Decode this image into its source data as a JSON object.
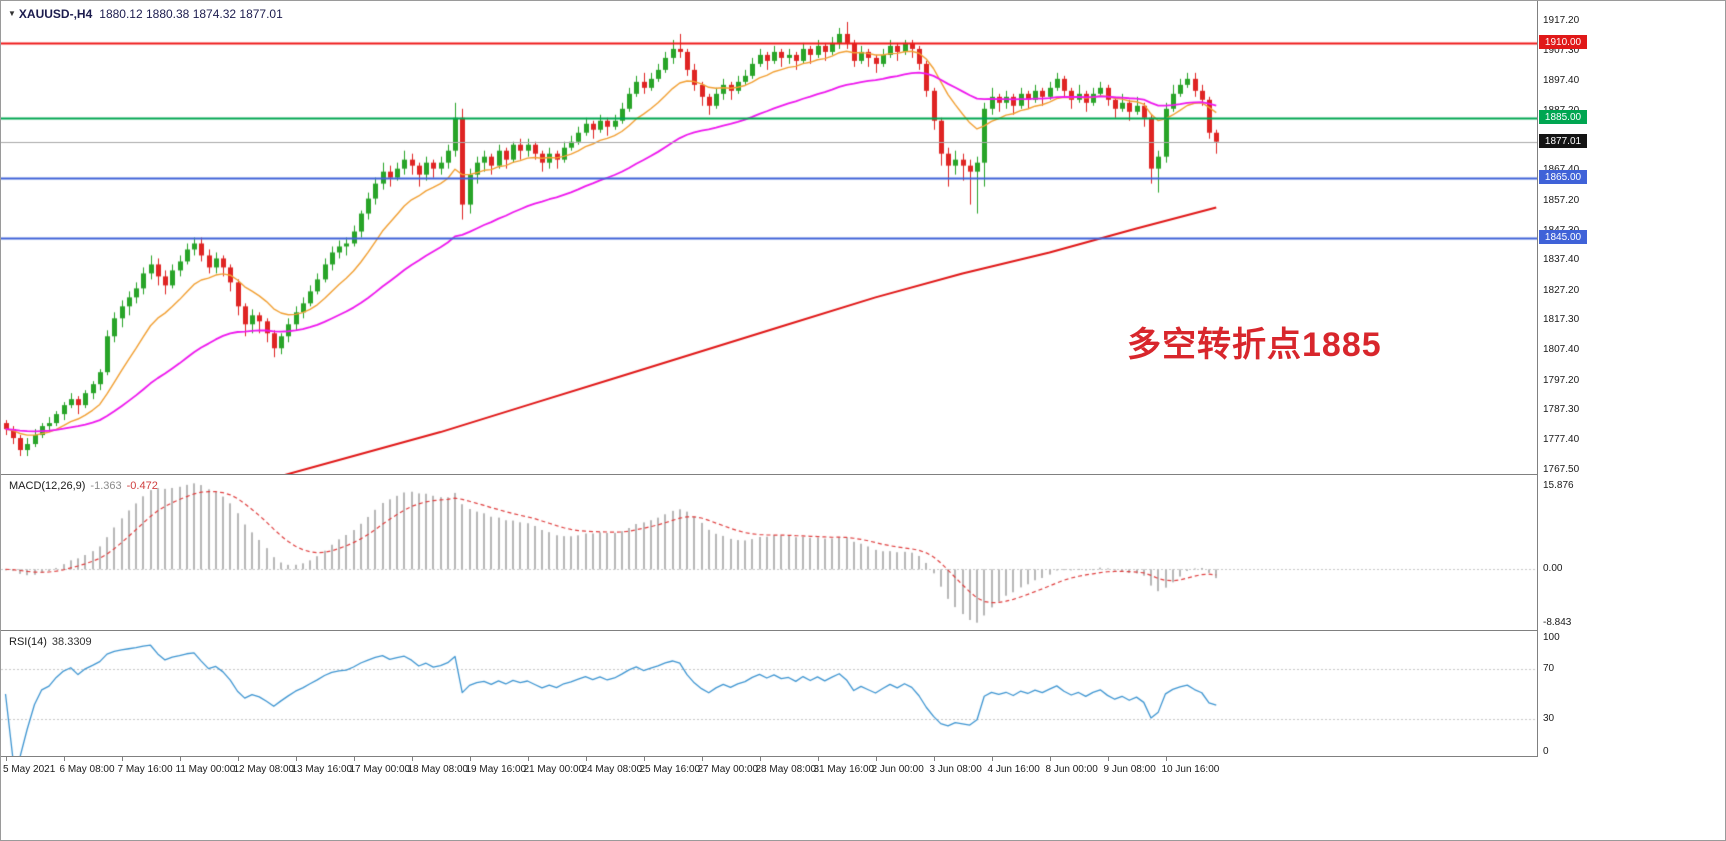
{
  "title": {
    "symbol": "XAUUSD-,H4",
    "ohlc": "1880.12 1880.38 1874.32 1877.01",
    "collapse_icon": "▼"
  },
  "annotation": {
    "text": "多空转折点1885",
    "color": "#d8262c"
  },
  "colors": {
    "bull": "#28a428",
    "bear": "#df2423",
    "ma_fast": "#f2a033",
    "ma_mid": "#ee18ee",
    "ma_slow": "#e01818",
    "hist": "#b8b8b8",
    "signal": "#e04040",
    "rsi": "#3f96d2",
    "axis_text": "#1a1a1a",
    "border": "#808080"
  },
  "chart_data": {
    "type": "candlestick",
    "symbol": "XAUUSD",
    "timeframe": "H4",
    "main": {
      "price_top": 1924,
      "price_bottom": 1766,
      "axis_ticks": [
        "1917.20",
        "1907.30",
        "1897.40",
        "1887.20",
        "1867.40",
        "1857.20",
        "1847.30",
        "1837.40",
        "1827.20",
        "1817.30",
        "1807.40",
        "1797.20",
        "1787.30",
        "1777.40",
        "1767.50"
      ],
      "hlines": [
        {
          "price": 1910.0,
          "label": "1910.00",
          "line": "#f01818",
          "badge": "#e01818",
          "width": 2
        },
        {
          "price": 1885.0,
          "label": "1885.00",
          "line": "#00a651",
          "badge": "#00a651",
          "width": 2
        },
        {
          "price": 1877.01,
          "label": "1877.01",
          "line": "#a8a8a8",
          "badge": "#141414",
          "width": 1
        },
        {
          "price": 1865.0,
          "label": "1865.00",
          "line": "#3f62d8",
          "badge": "#3f62d8",
          "width": 2
        },
        {
          "price": 1845.0,
          "label": "1845.00",
          "line": "#3f62d8",
          "badge": "#3f62d8",
          "width": 2
        }
      ],
      "slow_ma_points": [
        [
          36,
          1764
        ],
        [
          48,
          1772
        ],
        [
          60,
          1780
        ],
        [
          72,
          1789
        ],
        [
          84,
          1798
        ],
        [
          96,
          1807
        ],
        [
          108,
          1816
        ],
        [
          120,
          1825
        ],
        [
          132,
          1833
        ],
        [
          144,
          1840
        ],
        [
          156,
          1848
        ],
        [
          167,
          1855
        ]
      ],
      "candles": [
        [
          1783,
          1784,
          1779,
          1781
        ],
        [
          1781,
          1782,
          1776,
          1778
        ],
        [
          1778,
          1779,
          1772,
          1774
        ],
        [
          1774,
          1778,
          1772,
          1776
        ],
        [
          1776,
          1781,
          1775,
          1779
        ],
        [
          1779,
          1783,
          1778,
          1782
        ],
        [
          1782,
          1785,
          1780,
          1783
        ],
        [
          1783,
          1787,
          1782,
          1786
        ],
        [
          1786,
          1790,
          1784,
          1789
        ],
        [
          1789,
          1793,
          1788,
          1791
        ],
        [
          1791,
          1792,
          1786,
          1789
        ],
        [
          1789,
          1794,
          1788,
          1793
        ],
        [
          1793,
          1797,
          1791,
          1796
        ],
        [
          1796,
          1801,
          1794,
          1800
        ],
        [
          1800,
          1814,
          1799,
          1812
        ],
        [
          1812,
          1820,
          1810,
          1818
        ],
        [
          1818,
          1824,
          1815,
          1822
        ],
        [
          1822,
          1827,
          1819,
          1825
        ],
        [
          1825,
          1830,
          1823,
          1828
        ],
        [
          1828,
          1835,
          1826,
          1833
        ],
        [
          1833,
          1839,
          1831,
          1836
        ],
        [
          1836,
          1838,
          1829,
          1832
        ],
        [
          1832,
          1834,
          1826,
          1829
        ],
        [
          1829,
          1836,
          1828,
          1834
        ],
        [
          1834,
          1839,
          1832,
          1837
        ],
        [
          1837,
          1843,
          1836,
          1841
        ],
        [
          1841,
          1845,
          1839,
          1843
        ],
        [
          1843,
          1845,
          1837,
          1839
        ],
        [
          1839,
          1841,
          1833,
          1835
        ],
        [
          1835,
          1840,
          1833,
          1838
        ],
        [
          1838,
          1839,
          1832,
          1835
        ],
        [
          1835,
          1836,
          1827,
          1830
        ],
        [
          1830,
          1831,
          1819,
          1822
        ],
        [
          1822,
          1823,
          1812,
          1816
        ],
        [
          1816,
          1821,
          1813,
          1819
        ],
        [
          1819,
          1820,
          1813,
          1817
        ],
        [
          1817,
          1818,
          1810,
          1813
        ],
        [
          1813,
          1814,
          1805,
          1808
        ],
        [
          1808,
          1813,
          1806,
          1812
        ],
        [
          1812,
          1818,
          1810,
          1816
        ],
        [
          1816,
          1822,
          1814,
          1820
        ],
        [
          1820,
          1825,
          1818,
          1823
        ],
        [
          1823,
          1829,
          1822,
          1827
        ],
        [
          1827,
          1833,
          1826,
          1831
        ],
        [
          1831,
          1838,
          1830,
          1836
        ],
        [
          1836,
          1842,
          1834,
          1840
        ],
        [
          1840,
          1844,
          1838,
          1842
        ],
        [
          1842,
          1845,
          1839,
          1843
        ],
        [
          1843,
          1849,
          1842,
          1847
        ],
        [
          1847,
          1854,
          1845,
          1853
        ],
        [
          1853,
          1860,
          1851,
          1858
        ],
        [
          1858,
          1865,
          1856,
          1863
        ],
        [
          1863,
          1870,
          1861,
          1867
        ],
        [
          1867,
          1869,
          1862,
          1865
        ],
        [
          1865,
          1870,
          1864,
          1868
        ],
        [
          1868,
          1874,
          1866,
          1871
        ],
        [
          1871,
          1873,
          1866,
          1869
        ],
        [
          1869,
          1870,
          1862,
          1866
        ],
        [
          1866,
          1872,
          1864,
          1870
        ],
        [
          1870,
          1871,
          1865,
          1868
        ],
        [
          1868,
          1872,
          1866,
          1870
        ],
        [
          1870,
          1876,
          1868,
          1874
        ],
        [
          1874,
          1890,
          1872,
          1885
        ],
        [
          1885,
          1888,
          1851,
          1856
        ],
        [
          1856,
          1868,
          1853,
          1866
        ],
        [
          1866,
          1872,
          1863,
          1870
        ],
        [
          1870,
          1874,
          1867,
          1872
        ],
        [
          1872,
          1873,
          1866,
          1869
        ],
        [
          1869,
          1876,
          1868,
          1874
        ],
        [
          1874,
          1875,
          1868,
          1871
        ],
        [
          1871,
          1877,
          1870,
          1876
        ],
        [
          1876,
          1878,
          1871,
          1874
        ],
        [
          1874,
          1878,
          1872,
          1876
        ],
        [
          1876,
          1877,
          1871,
          1873
        ],
        [
          1873,
          1874,
          1867,
          1870
        ],
        [
          1870,
          1875,
          1868,
          1873
        ],
        [
          1873,
          1874,
          1868,
          1871
        ],
        [
          1871,
          1877,
          1870,
          1875
        ],
        [
          1875,
          1879,
          1874,
          1877
        ],
        [
          1877,
          1882,
          1876,
          1880
        ],
        [
          1880,
          1885,
          1879,
          1883
        ],
        [
          1883,
          1884,
          1878,
          1881
        ],
        [
          1881,
          1886,
          1880,
          1884
        ],
        [
          1884,
          1885,
          1879,
          1882
        ],
        [
          1882,
          1886,
          1881,
          1884
        ],
        [
          1884,
          1890,
          1883,
          1888
        ],
        [
          1888,
          1895,
          1887,
          1893
        ],
        [
          1893,
          1899,
          1892,
          1897
        ],
        [
          1897,
          1900,
          1893,
          1895
        ],
        [
          1895,
          1900,
          1894,
          1898
        ],
        [
          1898,
          1903,
          1897,
          1901
        ],
        [
          1901,
          1907,
          1900,
          1905
        ],
        [
          1905,
          1911,
          1903,
          1908
        ],
        [
          1908,
          1913,
          1905,
          1907
        ],
        [
          1907,
          1908,
          1899,
          1901
        ],
        [
          1901,
          1903,
          1894,
          1896
        ],
        [
          1896,
          1897,
          1889,
          1892
        ],
        [
          1892,
          1893,
          1886,
          1889
        ],
        [
          1889,
          1895,
          1888,
          1893
        ],
        [
          1893,
          1898,
          1891,
          1896
        ],
        [
          1896,
          1897,
          1891,
          1894
        ],
        [
          1894,
          1899,
          1893,
          1897
        ],
        [
          1897,
          1901,
          1896,
          1899
        ],
        [
          1899,
          1905,
          1898,
          1903
        ],
        [
          1903,
          1908,
          1902,
          1906
        ],
        [
          1906,
          1907,
          1901,
          1904
        ],
        [
          1904,
          1909,
          1903,
          1907
        ],
        [
          1907,
          1908,
          1902,
          1905
        ],
        [
          1905,
          1908,
          1903,
          1906
        ],
        [
          1906,
          1907,
          1901,
          1904
        ],
        [
          1904,
          1910,
          1903,
          1908
        ],
        [
          1908,
          1909,
          1903,
          1906
        ],
        [
          1906,
          1911,
          1905,
          1909
        ],
        [
          1909,
          1910,
          1904,
          1907
        ],
        [
          1907,
          1912,
          1906,
          1910
        ],
        [
          1910,
          1915,
          1908,
          1913
        ],
        [
          1913,
          1917,
          1908,
          1910
        ],
        [
          1910,
          1911,
          1902,
          1904
        ],
        [
          1904,
          1909,
          1903,
          1907
        ],
        [
          1907,
          1908,
          1902,
          1905
        ],
        [
          1905,
          1906,
          1900,
          1903
        ],
        [
          1903,
          1908,
          1902,
          1906
        ],
        [
          1906,
          1911,
          1905,
          1909
        ],
        [
          1909,
          1910,
          1904,
          1907
        ],
        [
          1907,
          1911,
          1906,
          1910
        ],
        [
          1910,
          1911,
          1905,
          1908
        ],
        [
          1908,
          1909,
          1901,
          1903
        ],
        [
          1903,
          1904,
          1892,
          1894
        ],
        [
          1894,
          1895,
          1881,
          1884
        ],
        [
          1884,
          1885,
          1869,
          1873
        ],
        [
          1873,
          1875,
          1862,
          1869
        ],
        [
          1869,
          1874,
          1866,
          1871
        ],
        [
          1871,
          1873,
          1864,
          1869
        ],
        [
          1869,
          1871,
          1856,
          1867
        ],
        [
          1867,
          1872,
          1853,
          1870
        ],
        [
          1870,
          1890,
          1862,
          1888
        ],
        [
          1888,
          1895,
          1886,
          1892
        ],
        [
          1892,
          1893,
          1887,
          1890
        ],
        [
          1890,
          1894,
          1888,
          1892
        ],
        [
          1892,
          1893,
          1886,
          1889
        ],
        [
          1889,
          1895,
          1888,
          1893
        ],
        [
          1893,
          1894,
          1888,
          1891
        ],
        [
          1891,
          1896,
          1890,
          1894
        ],
        [
          1894,
          1895,
          1889,
          1892
        ],
        [
          1892,
          1897,
          1891,
          1895
        ],
        [
          1895,
          1900,
          1894,
          1898
        ],
        [
          1898,
          1899,
          1892,
          1894
        ],
        [
          1894,
          1895,
          1888,
          1891
        ],
        [
          1891,
          1896,
          1890,
          1893
        ],
        [
          1893,
          1894,
          1887,
          1890
        ],
        [
          1890,
          1895,
          1889,
          1893
        ],
        [
          1893,
          1897,
          1892,
          1895
        ],
        [
          1895,
          1896,
          1889,
          1891
        ],
        [
          1891,
          1892,
          1885,
          1888
        ],
        [
          1888,
          1893,
          1887,
          1890
        ],
        [
          1890,
          1891,
          1884,
          1887
        ],
        [
          1887,
          1892,
          1886,
          1889
        ],
        [
          1889,
          1890,
          1882,
          1885
        ],
        [
          1885,
          1886,
          1863,
          1868
        ],
        [
          1868,
          1874,
          1860,
          1872
        ],
        [
          1872,
          1890,
          1870,
          1888
        ],
        [
          1888,
          1896,
          1887,
          1893
        ],
        [
          1893,
          1898,
          1892,
          1896
        ],
        [
          1896,
          1900,
          1895,
          1898
        ],
        [
          1898,
          1900,
          1892,
          1894
        ],
        [
          1894,
          1896,
          1889,
          1891
        ],
        [
          1891,
          1892,
          1878,
          1880
        ],
        [
          1880,
          1881,
          1873,
          1877.01
        ]
      ]
    },
    "x_axis": {
      "step": 8,
      "labels": [
        "5 May 2021",
        "6 May 08:00",
        "7 May 16:00",
        "11 May 00:00",
        "12 May 08:00",
        "13 May 16:00",
        "17 May 00:00",
        "18 May 08:00",
        "19 May 16:00",
        "21 May 00:00",
        "24 May 08:00",
        "25 May 16:00",
        "27 May 00:00",
        "28 May 08:00",
        "31 May 16:00",
        "2 Jun 00:00",
        "3 Jun 08:00",
        "4 Jun 16:00",
        "8 Jun 00:00",
        "9 Jun 08:00",
        "10 Jun 16:00"
      ]
    },
    "macd": {
      "label": "MACD(12,26,9)",
      "value_main": "-1.363",
      "value_signal": "-0.472",
      "axis_top": "15.876",
      "axis_zero": "0.00",
      "axis_bottom": "-8.843",
      "fast": 12,
      "slow": 26,
      "signal": 9
    },
    "rsi": {
      "label": "RSI(14)",
      "value": "38.3309",
      "period": 14,
      "axis_labels": [
        "100",
        "70",
        "30",
        "0"
      ],
      "levels": [
        70,
        30
      ]
    }
  }
}
